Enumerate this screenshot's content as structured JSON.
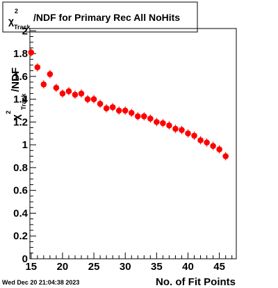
{
  "title": {
    "chi": "χ",
    "sup": "2",
    "sub": "Track",
    "rest": "/NDF for Primary Rec All NoHits"
  },
  "timestamp": "Wed Dec 20 21:04:38 2023",
  "chart_data": {
    "type": "scatter",
    "xlabel": "No. of Fit Points",
    "ylabel": {
      "chi": "χ",
      "sup": "2",
      "sub": "Track",
      "rest": "/NDF"
    },
    "xlim": [
      14.8,
      47.7
    ],
    "ylim": [
      0,
      2.02
    ],
    "x_ticks": [
      15,
      20,
      25,
      30,
      35,
      40,
      45
    ],
    "y_ticks": [
      0,
      0.2,
      0.4,
      0.6,
      0.8,
      1,
      1.2,
      1.4,
      1.6,
      1.8,
      2
    ],
    "marker_color": "#ff0000",
    "x": [
      15,
      16,
      17,
      18,
      19,
      20,
      21,
      22,
      23,
      24,
      25,
      26,
      27,
      28,
      29,
      30,
      31,
      32,
      33,
      34,
      35,
      36,
      37,
      38,
      39,
      40,
      41,
      42,
      43,
      44,
      45,
      46
    ],
    "y": [
      1.81,
      1.68,
      1.53,
      1.62,
      1.5,
      1.45,
      1.47,
      1.44,
      1.45,
      1.4,
      1.4,
      1.36,
      1.32,
      1.33,
      1.3,
      1.3,
      1.28,
      1.25,
      1.25,
      1.23,
      1.2,
      1.19,
      1.17,
      1.14,
      1.13,
      1.1,
      1.08,
      1.04,
      1.02,
      0.99,
      0.96,
      0.9
    ]
  }
}
